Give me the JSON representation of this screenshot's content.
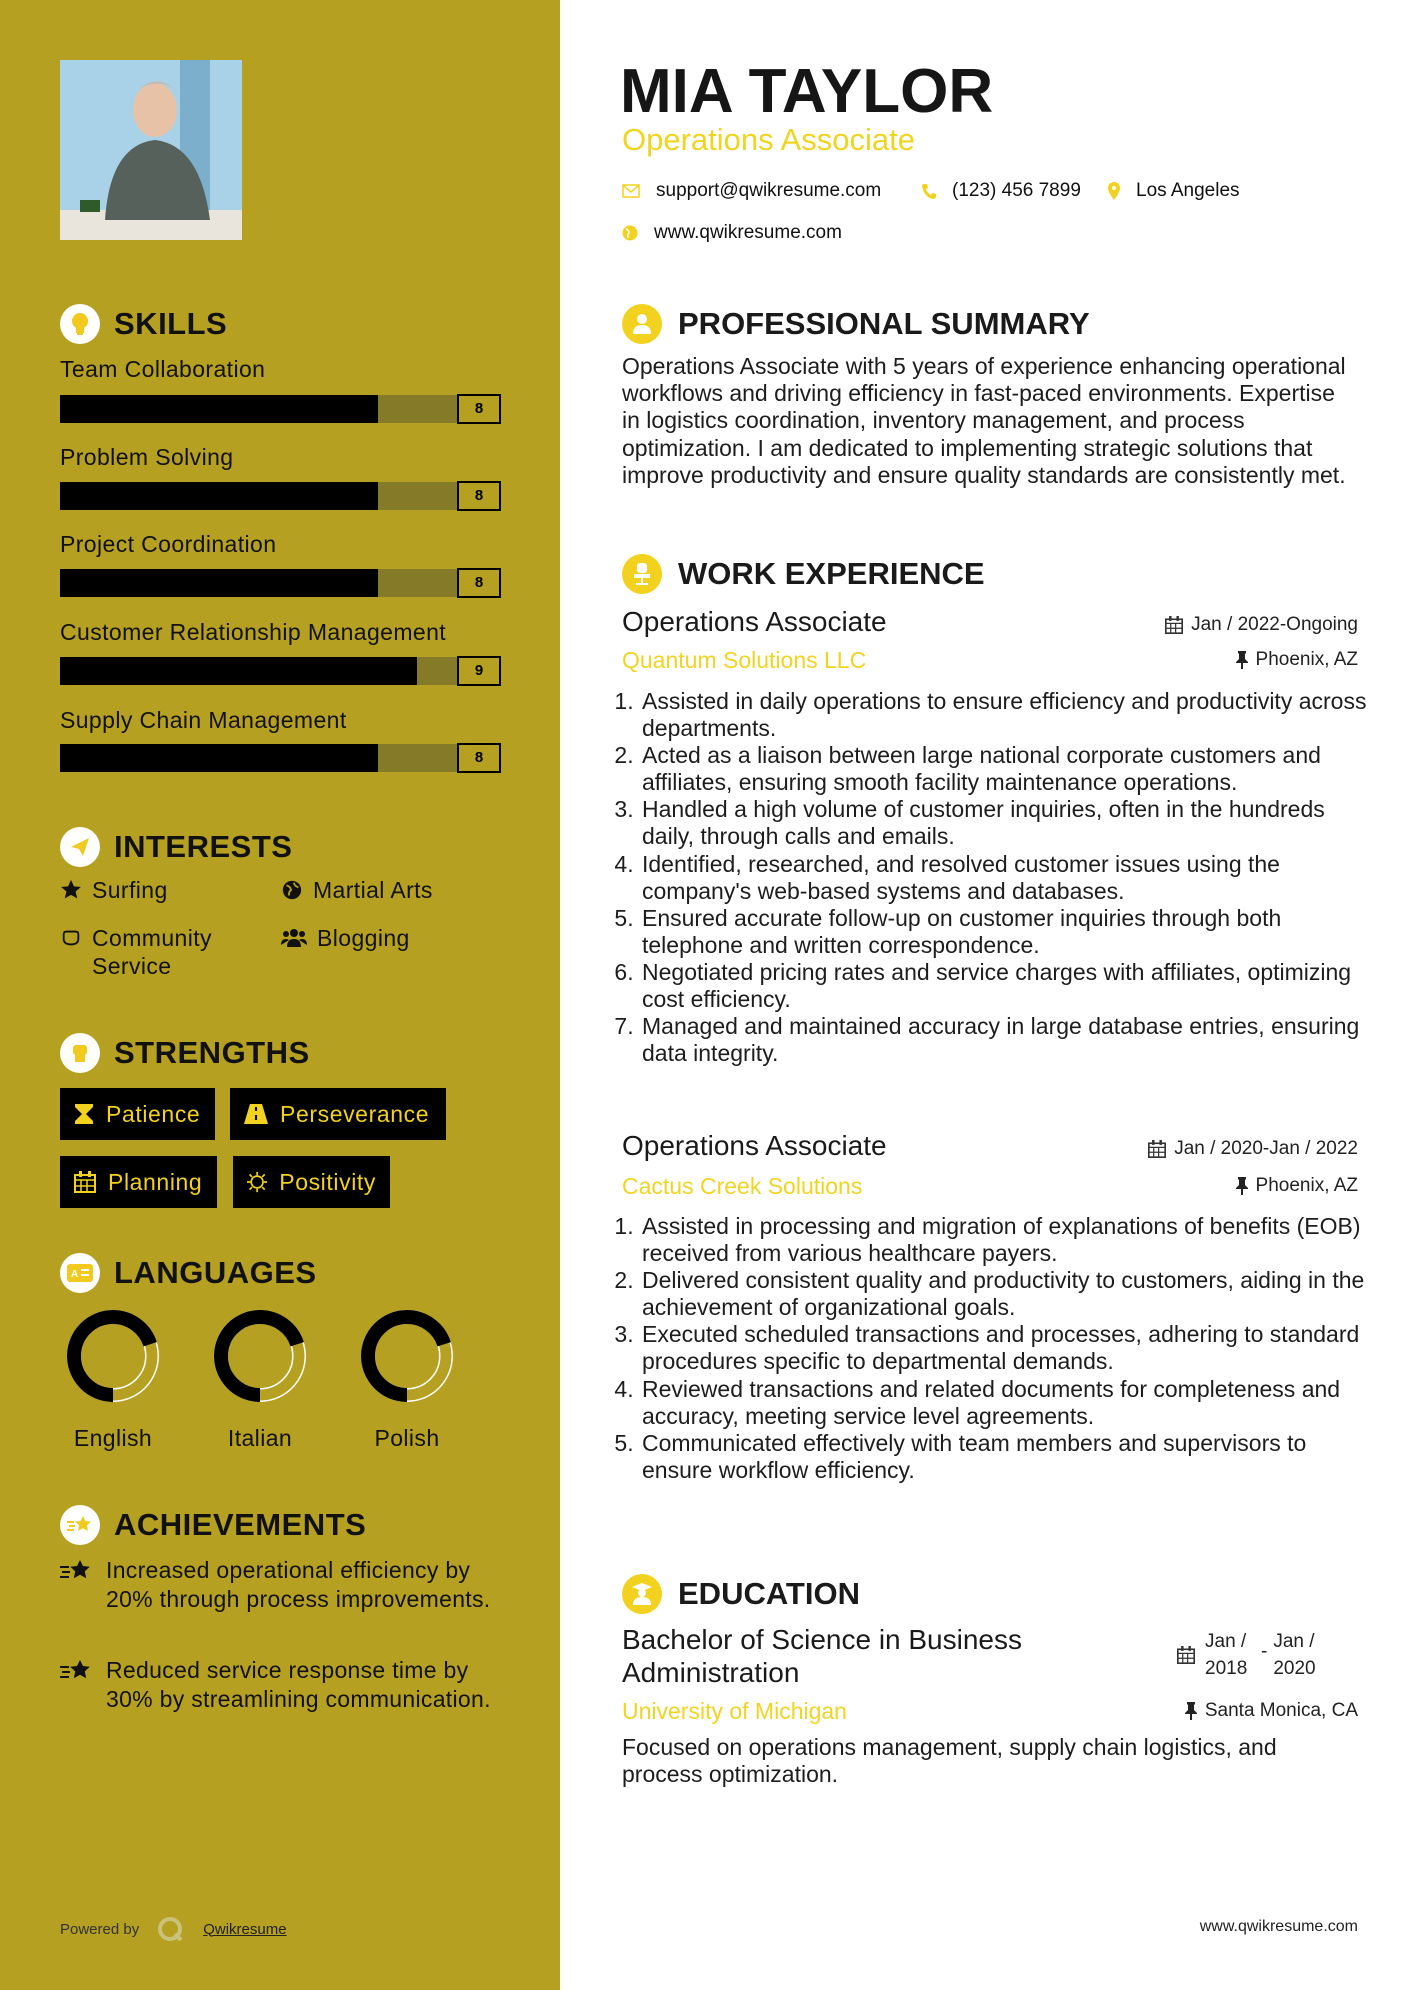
{
  "colors": {
    "sidebar": "#b5a022",
    "accent": "#f2d21e",
    "bar_fill": "#000000",
    "bar_track": "#857a27"
  },
  "header": {
    "name": "MIA TAYLOR",
    "title": "Operations Associate",
    "email": "support@qwikresume.com",
    "phone": "(123) 456 7899",
    "location": "Los Angeles",
    "website": "www.qwikresume.com"
  },
  "sidebar": {
    "skills": {
      "heading": "SKILLS",
      "items": [
        {
          "label": "Team Collaboration",
          "score": "8",
          "level": 8
        },
        {
          "label": "Problem Solving",
          "score": "8",
          "level": 8
        },
        {
          "label": "Project Coordination",
          "score": "8",
          "level": 8
        },
        {
          "label": "Customer Relationship Management",
          "score": "9",
          "level": 9
        },
        {
          "label": "Supply Chain Management",
          "score": "8",
          "level": 8
        }
      ],
      "scale_max": 10
    },
    "interests": {
      "heading": "INTERESTS",
      "items": [
        {
          "label": "Surfing",
          "icon": "star-icon"
        },
        {
          "label": "Martial Arts",
          "icon": "globe-icon"
        },
        {
          "label": "Community Service",
          "icon": "hand-icon"
        },
        {
          "label": "Blogging",
          "icon": "users-icon"
        }
      ]
    },
    "strengths": {
      "heading": "STRENGTHS",
      "items": [
        {
          "label": "Patience",
          "icon": "hourglass-icon"
        },
        {
          "label": "Perseverance",
          "icon": "road-icon"
        },
        {
          "label": "Planning",
          "icon": "calendar-icon"
        },
        {
          "label": "Positivity",
          "icon": "sun-icon"
        }
      ]
    },
    "languages": {
      "heading": "LANGUAGES",
      "items": [
        {
          "label": "English",
          "level_percent": 70
        },
        {
          "label": "Italian",
          "level_percent": 70
        },
        {
          "label": "Polish",
          "level_percent": 70
        }
      ]
    },
    "achievements": {
      "heading": "ACHIEVEMENTS",
      "items": [
        "Increased operational efficiency by 20% through process improvements.",
        "Reduced service response time by 30% by streamlining communication."
      ]
    },
    "footer": {
      "powered_by": "Powered by",
      "brand": "Qwikresume"
    }
  },
  "main": {
    "summary": {
      "heading": "PROFESSIONAL SUMMARY",
      "text": "Operations Associate with 5 years of experience enhancing operational workflows and driving efficiency in fast-paced environments. Expertise in logistics coordination, inventory management, and process optimization. I am dedicated to implementing strategic solutions that improve productivity and ensure quality standards are consistently met."
    },
    "experience": {
      "heading": "WORK EXPERIENCE",
      "jobs": [
        {
          "title": "Operations Associate",
          "company": "Quantum Solutions LLC",
          "dates": "Jan / 2022-Ongoing",
          "location": "Phoenix, AZ",
          "duties": [
            "Assisted in daily operations to ensure efficiency and productivity across departments.",
            "Acted as a liaison between large national corporate customers and affiliates, ensuring smooth facility maintenance operations.",
            "Handled a high volume of customer inquiries, often in the hundreds daily, through calls and emails.",
            "Identified, researched, and resolved customer issues using the company's web-based systems and databases.",
            "Ensured accurate follow-up on customer inquiries through both telephone and written correspondence.",
            "Negotiated pricing rates and service charges with affiliates, optimizing cost efficiency.",
            "Managed and maintained accuracy in large database entries, ensuring data integrity."
          ]
        },
        {
          "title": "Operations Associate",
          "company": "Cactus Creek Solutions",
          "dates": "Jan / 2020-Jan / 2022",
          "location": "Phoenix, AZ",
          "duties": [
            "Assisted in processing and migration of explanations of benefits (EOB) received from various healthcare payers.",
            "Delivered consistent quality and productivity to customers, aiding in the achievement of organizational goals.",
            "Executed scheduled transactions and processes, adhering to standard procedures specific to departmental demands.",
            "Reviewed transactions and related documents for completeness and accuracy, meeting service level agreements.",
            "Communicated effectively with team members and supervisors to ensure workflow efficiency."
          ]
        }
      ]
    },
    "education": {
      "heading": "EDUCATION",
      "degree": "Bachelor of Science in Business Administration",
      "school": "University of Michigan",
      "start": "Jan / 2018",
      "end": "Jan / 2020",
      "location": "Santa Monica, CA",
      "description": "Focused on operations management, supply chain logistics, and process optimization."
    },
    "footer": {
      "website": "www.qwikresume.com"
    }
  }
}
